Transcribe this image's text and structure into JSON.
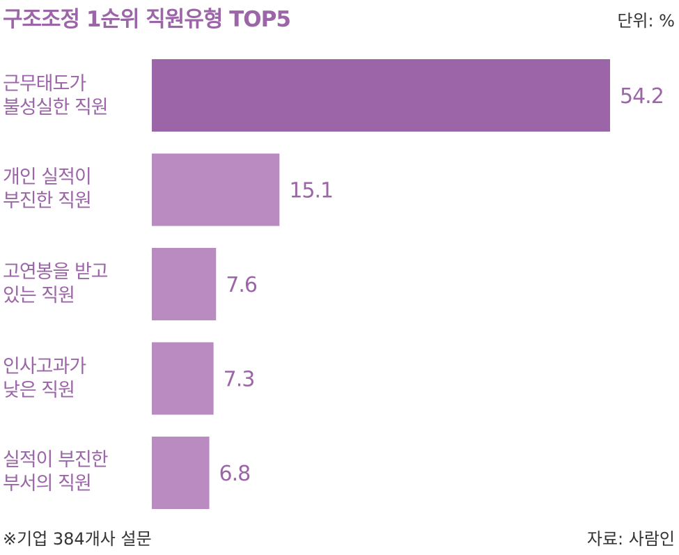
{
  "chart_data": {
    "type": "bar",
    "orientation": "horizontal",
    "title": "구조조정 1순위 직원유형 TOP5",
    "unit_label": "단위: %",
    "categories": [
      [
        "근무태도가",
        "불성실한 직원"
      ],
      [
        "개인 실적이",
        "부진한 직원"
      ],
      [
        "고연봉을 받고",
        "있는 직원"
      ],
      [
        "인사고과가",
        "낮은 직원"
      ],
      [
        "실적이 부진한",
        "부서의 직원"
      ]
    ],
    "values": [
      54.2,
      15.1,
      7.6,
      7.3,
      6.8
    ],
    "value_labels": [
      "54.2",
      "15.1",
      "7.6",
      "7.3",
      "6.8"
    ],
    "xlim": [
      0,
      54.2
    ],
    "grid": false,
    "colors": {
      "highlight": "#9b65a8",
      "bar": "#b98bc1",
      "text_accent": "#9b65a8"
    },
    "footnote": "※기업 384개사 설문",
    "source": "자료: 사람인"
  }
}
